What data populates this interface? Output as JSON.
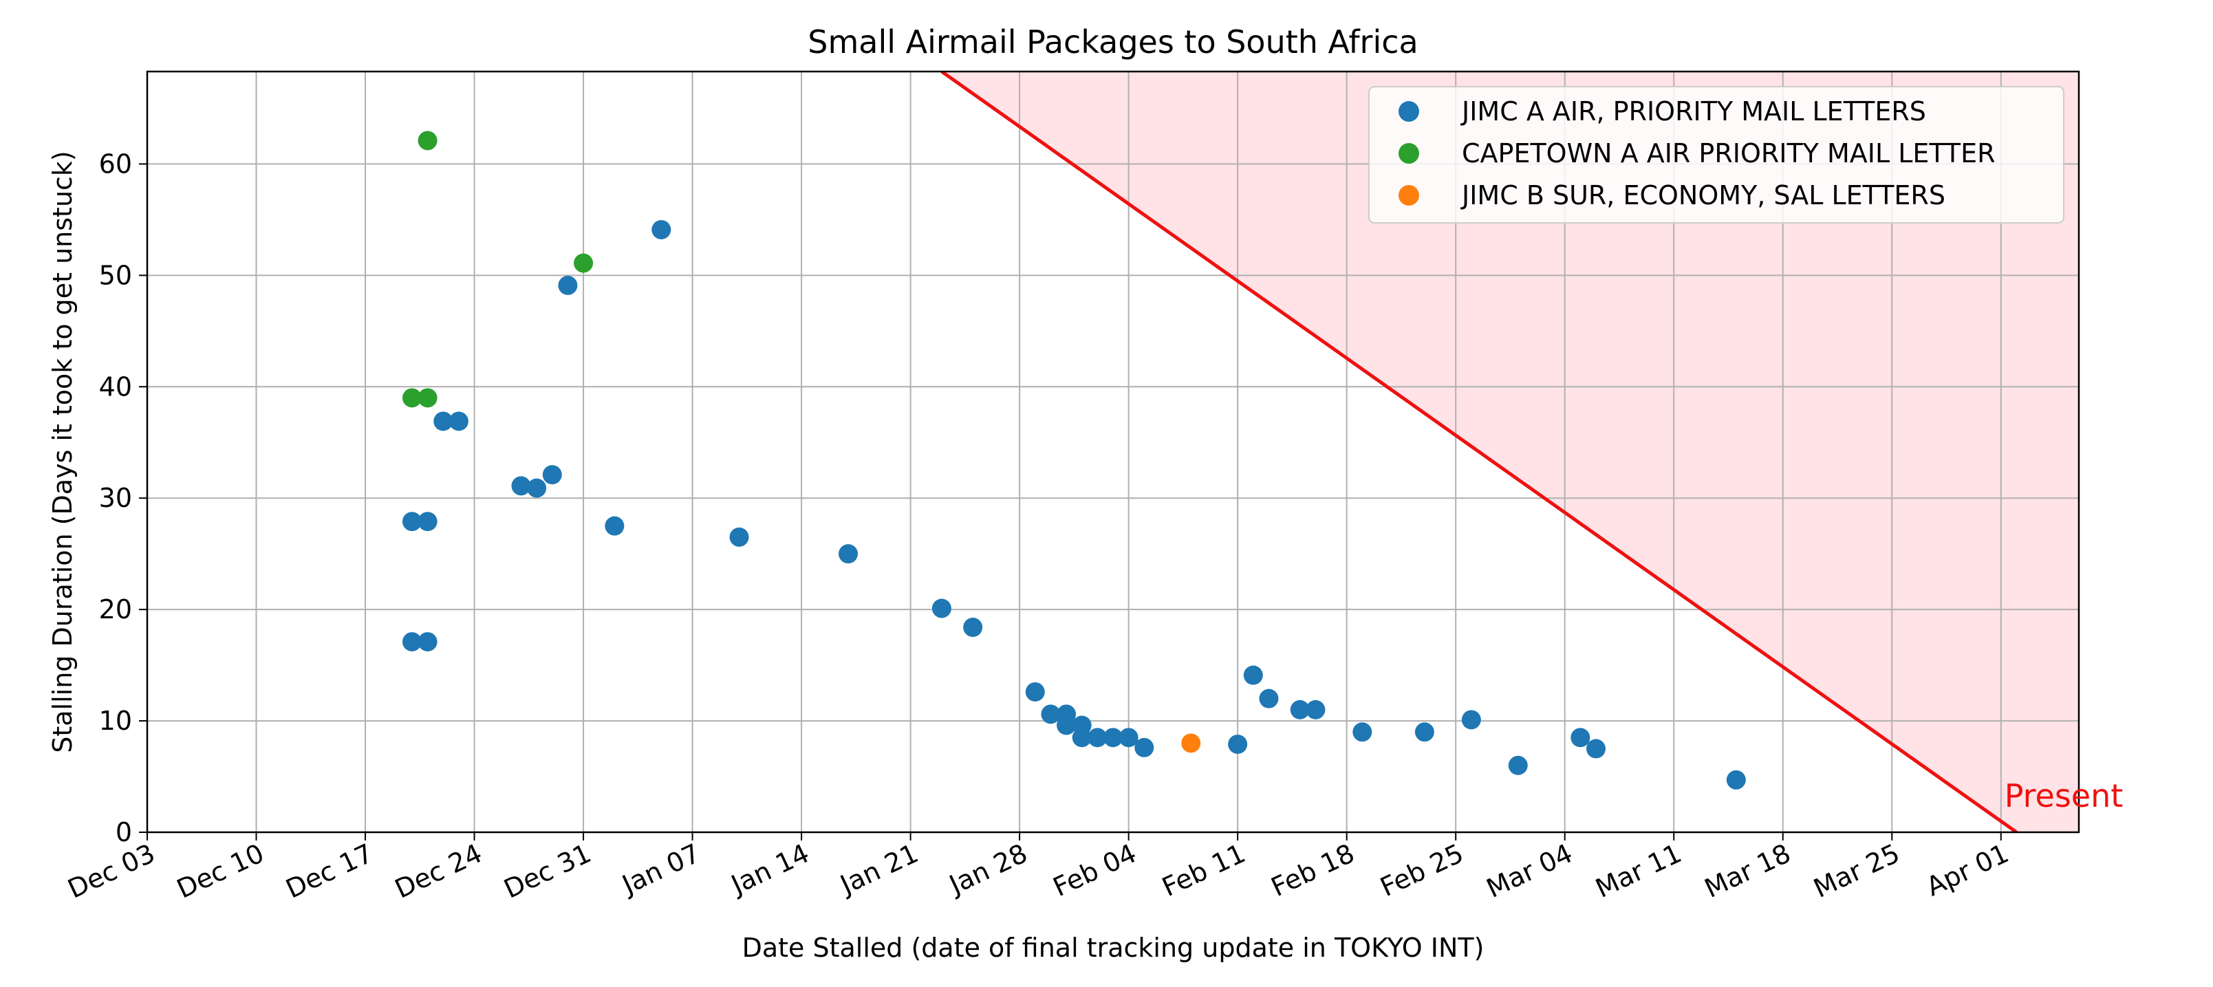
{
  "chart_data": {
    "type": "scatter",
    "title": "Small Airmail Packages to South Africa",
    "xlabel": "Date Stalled (date of final tracking update in TOKYO INT)",
    "ylabel": "Stalling Duration (Days it took to get unstuck)",
    "x_ticks": [
      "Dec 03",
      "Dec 10",
      "Dec 17",
      "Dec 24",
      "Dec 31",
      "Jan 07",
      "Jan 14",
      "Jan 21",
      "Jan 28",
      "Feb 04",
      "Feb 11",
      "Feb 18",
      "Feb 25",
      "Mar 04",
      "Mar 11",
      "Mar 18",
      "Mar 25",
      "Apr 01"
    ],
    "y_ticks": [
      0,
      10,
      20,
      30,
      40,
      50,
      60
    ],
    "xlim": [
      "2023-12-03",
      "2024-04-05"
    ],
    "ylim": [
      0,
      68.3
    ],
    "grid": true,
    "legend_position": "top-right",
    "colors": {
      "blue": "#1f77b4",
      "green": "#2ca02c",
      "orange": "#ff7f0e",
      "present_line": "#ee1111",
      "region_fill": "#ffe3e6"
    },
    "present": {
      "label": "Present",
      "line": [
        {
          "x": "2024-01-23",
          "y": 68.3
        },
        {
          "x": "2024-04-01",
          "y": 0
        }
      ]
    },
    "series": [
      {
        "name": "JIMC A AIR, PRIORITY MAIL LETTERS",
        "color": "#1f77b4",
        "points": [
          {
            "x": "2023-12-20",
            "y": 27.9
          },
          {
            "x": "2023-12-21",
            "y": 27.9
          },
          {
            "x": "2023-12-20",
            "y": 17.1
          },
          {
            "x": "2023-12-21",
            "y": 17.1
          },
          {
            "x": "2023-12-22",
            "y": 36.9
          },
          {
            "x": "2023-12-23",
            "y": 36.9
          },
          {
            "x": "2023-12-27",
            "y": 31.1
          },
          {
            "x": "2023-12-28",
            "y": 30.9
          },
          {
            "x": "2023-12-29",
            "y": 32.1
          },
          {
            "x": "2023-12-30",
            "y": 49.1
          },
          {
            "x": "2024-01-02",
            "y": 27.5
          },
          {
            "x": "2024-01-05",
            "y": 54.1
          },
          {
            "x": "2024-01-10",
            "y": 26.5
          },
          {
            "x": "2024-01-17",
            "y": 25.0
          },
          {
            "x": "2024-01-23",
            "y": 20.1
          },
          {
            "x": "2024-01-25",
            "y": 18.4
          },
          {
            "x": "2024-01-29",
            "y": 12.6
          },
          {
            "x": "2024-01-30",
            "y": 10.6
          },
          {
            "x": "2024-01-31",
            "y": 10.6
          },
          {
            "x": "2024-01-31",
            "y": 9.6
          },
          {
            "x": "2024-02-01",
            "y": 9.6
          },
          {
            "x": "2024-02-01",
            "y": 8.5
          },
          {
            "x": "2024-02-02",
            "y": 8.5
          },
          {
            "x": "2024-02-03",
            "y": 8.5
          },
          {
            "x": "2024-02-04",
            "y": 8.5
          },
          {
            "x": "2024-02-05",
            "y": 7.6
          },
          {
            "x": "2024-02-11",
            "y": 7.9
          },
          {
            "x": "2024-02-12",
            "y": 14.1
          },
          {
            "x": "2024-02-13",
            "y": 12.0
          },
          {
            "x": "2024-02-15",
            "y": 11.0
          },
          {
            "x": "2024-02-16",
            "y": 11.0
          },
          {
            "x": "2024-02-19",
            "y": 9.0
          },
          {
            "x": "2024-02-23",
            "y": 9.0
          },
          {
            "x": "2024-02-26",
            "y": 10.1
          },
          {
            "x": "2024-02-29",
            "y": 6.0
          },
          {
            "x": "2024-03-04",
            "y": 8.5
          },
          {
            "x": "2024-03-05",
            "y": 7.5
          },
          {
            "x": "2024-03-14",
            "y": 4.7
          }
        ]
      },
      {
        "name": "CAPETOWN A AIR PRIORITY MAIL LETTER",
        "color": "#2ca02c",
        "points": [
          {
            "x": "2023-12-21",
            "y": 62.1
          },
          {
            "x": "2023-12-20",
            "y": 39.0
          },
          {
            "x": "2023-12-21",
            "y": 39.0
          },
          {
            "x": "2023-12-31",
            "y": 51.1
          }
        ]
      },
      {
        "name": "JIMC B SUR, ECONOMY, SAL LETTERS",
        "color": "#ff7f0e",
        "points": [
          {
            "x": "2024-02-08",
            "y": 8.0
          }
        ]
      }
    ]
  }
}
